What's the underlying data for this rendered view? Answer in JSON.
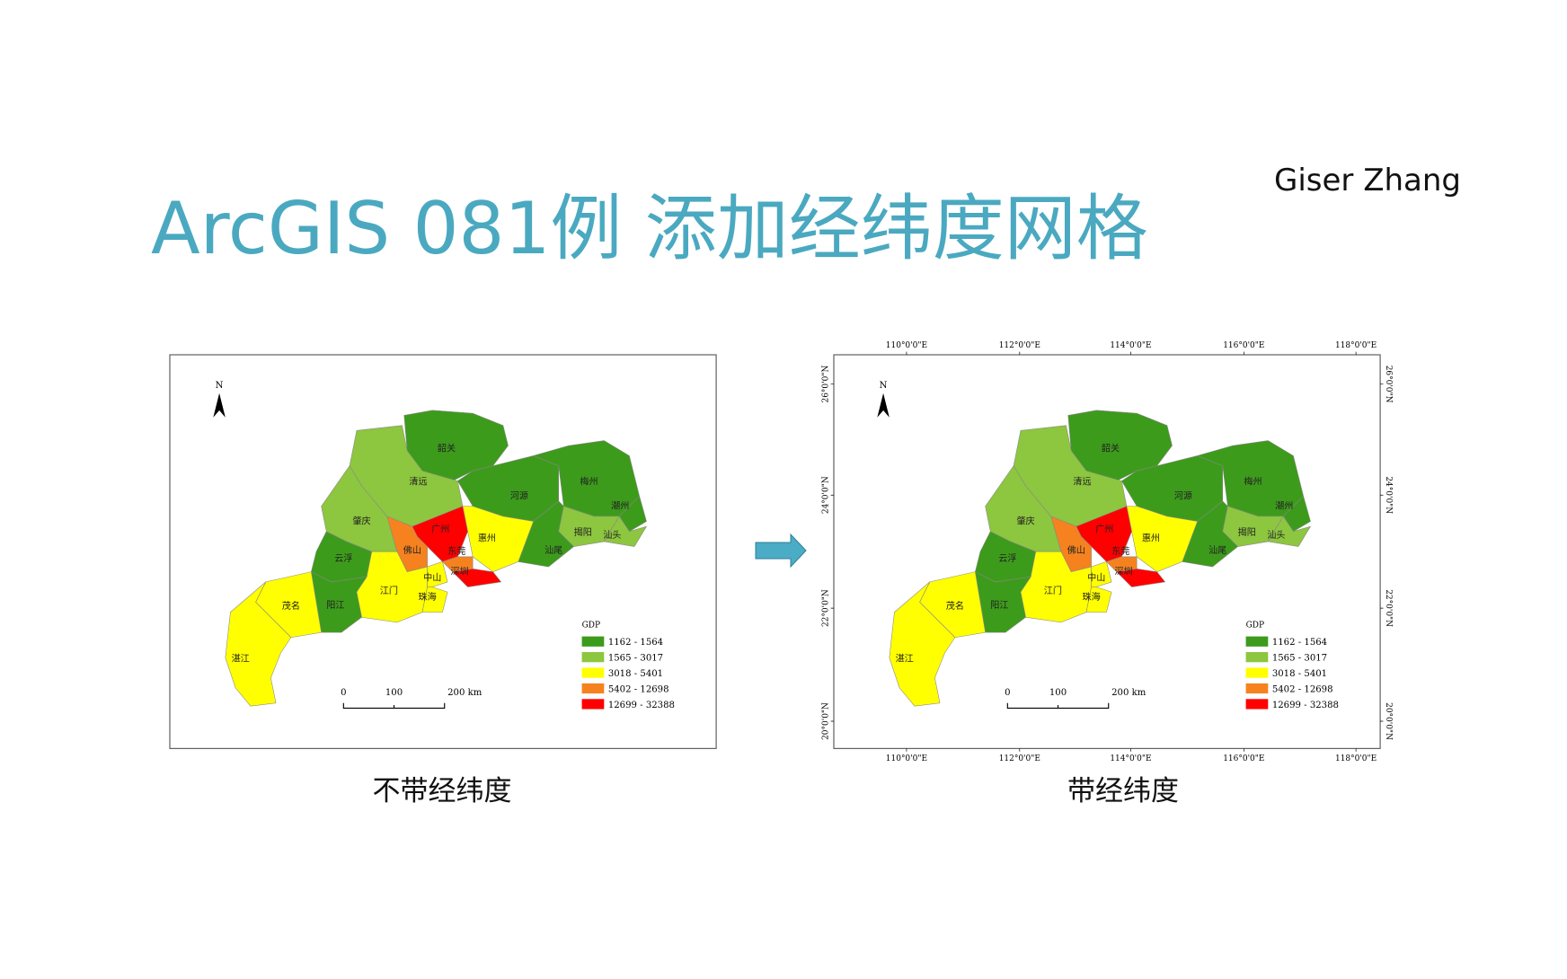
{
  "header": {
    "title": "ArcGIS 081例  添加经纬度网格",
    "author": "Giser Zhang"
  },
  "map": {
    "north": "N",
    "cities": [
      {
        "name": "韶关",
        "color": "#3d9b1c"
      },
      {
        "name": "清远",
        "color": "#8dc63f"
      },
      {
        "name": "河源",
        "color": "#3d9b1c"
      },
      {
        "name": "梅州",
        "color": "#3d9b1c"
      },
      {
        "name": "潮州",
        "color": "#3d9b1c"
      },
      {
        "name": "揭阳",
        "color": "#8dc63f"
      },
      {
        "name": "汕头",
        "color": "#8dc63f"
      },
      {
        "name": "汕尾",
        "color": "#3d9b1c"
      },
      {
        "name": "惠州",
        "color": "#ffff00"
      },
      {
        "name": "广州",
        "color": "#ff0000"
      },
      {
        "name": "东莞",
        "color": "#f5821f"
      },
      {
        "name": "深圳",
        "color": "#ff0000"
      },
      {
        "name": "佛山",
        "color": "#f5821f"
      },
      {
        "name": "肇庆",
        "color": "#8dc63f"
      },
      {
        "name": "云浮",
        "color": "#3d9b1c"
      },
      {
        "name": "江门",
        "color": "#ffff00"
      },
      {
        "name": "中山",
        "color": "#ffff00"
      },
      {
        "name": "珠海",
        "color": "#ffff00"
      },
      {
        "name": "阳江",
        "color": "#3d9b1c"
      },
      {
        "name": "茂名",
        "color": "#ffff00"
      },
      {
        "name": "湛江",
        "color": "#ffff00"
      }
    ],
    "legend": {
      "title": "GDP",
      "classes": [
        {
          "label": "1162 - 1564",
          "color": "#3d9b1c"
        },
        {
          "label": "1565 - 3017",
          "color": "#8dc63f"
        },
        {
          "label": "3018 - 5401",
          "color": "#ffff00"
        },
        {
          "label": "5402 - 12698",
          "color": "#f5821f"
        },
        {
          "label": "12699 - 32388",
          "color": "#ff0000"
        }
      ]
    },
    "scale_bar": [
      "0",
      "100",
      "200 km"
    ]
  },
  "graticule": {
    "lon": [
      "110°0'0\"E",
      "112°0'0\"E",
      "114°0'0\"E",
      "116°0'0\"E",
      "118°0'0\"E"
    ],
    "lat": [
      "26°0'0\"N",
      "24°0'0\"N",
      "22°0'0\"N",
      "20°0'0\"N"
    ]
  },
  "captions": [
    "不带经纬度",
    "带经纬度"
  ]
}
